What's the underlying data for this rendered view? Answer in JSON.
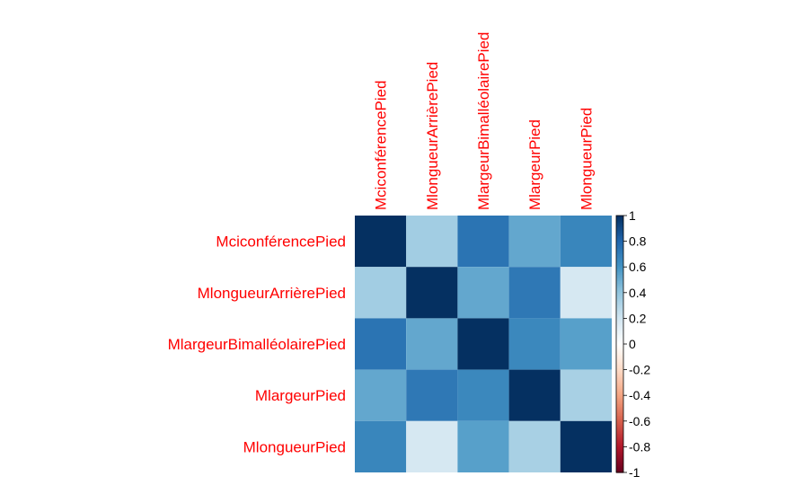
{
  "chart_data": {
    "type": "heatmap",
    "variables": [
      "Mciconférence Pied",
      "MlongueurArrièrePied",
      "MlargeurBimalléolairePied",
      "MlargeurPied",
      "MlongueurPied"
    ],
    "row_labels": [
      "MciconférencePied",
      "MlongueurArrièrePied",
      "MlargeurBimalléolairePied",
      "MlargeurPied",
      "MlongueurPied"
    ],
    "col_labels": [
      "MciconférencePied",
      "MlongueurArrièrePied",
      "MlargeurBimalléolairePied",
      "MlargeurPied",
      "MlongueurPied"
    ],
    "values": [
      [
        1.0,
        0.35,
        0.74,
        0.52,
        0.66
      ],
      [
        0.35,
        1.0,
        0.52,
        0.72,
        0.18
      ],
      [
        0.74,
        0.52,
        1.0,
        0.65,
        0.55
      ],
      [
        0.52,
        0.72,
        0.65,
        1.0,
        0.33
      ],
      [
        0.66,
        0.18,
        0.55,
        0.33,
        1.0
      ]
    ],
    "colorbar": {
      "ticks": [
        "1",
        "0.8",
        "0.6",
        "0.4",
        "0.2",
        "0",
        "-0.2",
        "-0.4",
        "-0.6",
        "-0.8",
        "-1"
      ],
      "range": [
        -1,
        1
      ]
    },
    "label_color": "#ff0000",
    "palette": {
      "stops": [
        [
          -1.0,
          "#67001f"
        ],
        [
          -0.8,
          "#b2182b"
        ],
        [
          -0.6,
          "#d6604d"
        ],
        [
          -0.4,
          "#f4a582"
        ],
        [
          -0.2,
          "#fddbc7"
        ],
        [
          0.0,
          "#ffffff"
        ],
        [
          0.2,
          "#d1e5f0"
        ],
        [
          0.4,
          "#92c5de"
        ],
        [
          0.6,
          "#4393c3"
        ],
        [
          0.8,
          "#2166ac"
        ],
        [
          1.0,
          "#053061"
        ]
      ]
    }
  }
}
